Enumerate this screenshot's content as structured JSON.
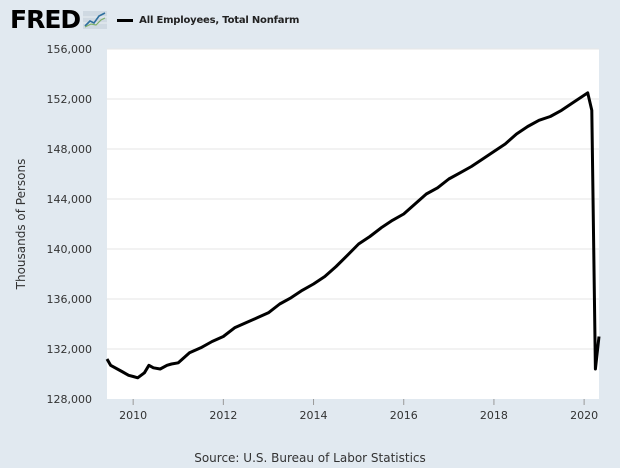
{
  "header": {
    "logo_text": "FRED",
    "series_label": "All Employees, Total Nonfarm"
  },
  "footer": {
    "source": "Source: U.S. Bureau of Labor Statistics"
  },
  "colors": {
    "background": "#e1e9f0",
    "plot_background": "#ffffff",
    "line": "#000000",
    "grid": "#e6e6e6"
  },
  "chart_data": {
    "type": "line",
    "title": "",
    "xlabel": "",
    "ylabel": "Thousands of Persons",
    "xlim": [
      2009.42,
      2020.33
    ],
    "ylim": [
      128000,
      156000
    ],
    "grid": true,
    "legend": "top-left",
    "y_ticks": [
      128000,
      132000,
      136000,
      140000,
      144000,
      148000,
      152000,
      156000
    ],
    "y_tick_labels": [
      "128,000",
      "132,000",
      "136,000",
      "140,000",
      "144,000",
      "148,000",
      "152,000",
      "156,000"
    ],
    "x_ticks": [
      2010,
      2012,
      2014,
      2016,
      2018,
      2020
    ],
    "x_tick_labels": [
      "2010",
      "2012",
      "2014",
      "2016",
      "2018",
      "2020"
    ],
    "series": [
      {
        "name": "All Employees, Total Nonfarm",
        "x": [
          2009.42,
          2009.5,
          2009.75,
          2009.9,
          2010.0,
          2010.1,
          2010.25,
          2010.35,
          2010.45,
          2010.6,
          2010.75,
          2010.85,
          2011.0,
          2011.25,
          2011.5,
          2011.75,
          2012.0,
          2012.25,
          2012.5,
          2012.75,
          2013.0,
          2013.25,
          2013.5,
          2013.75,
          2014.0,
          2014.25,
          2014.5,
          2014.75,
          2015.0,
          2015.25,
          2015.5,
          2015.75,
          2016.0,
          2016.25,
          2016.5,
          2016.75,
          2017.0,
          2017.25,
          2017.5,
          2017.75,
          2018.0,
          2018.25,
          2018.5,
          2018.75,
          2019.0,
          2019.25,
          2019.5,
          2019.75,
          2020.0,
          2020.08,
          2020.17,
          2020.25,
          2020.33
        ],
        "values": [
          131200,
          130700,
          130200,
          129900,
          129800,
          129700,
          130100,
          130700,
          130500,
          130400,
          130700,
          130800,
          130900,
          131700,
          132100,
          132600,
          133000,
          133700,
          134100,
          134500,
          134900,
          135600,
          136100,
          136700,
          137200,
          137800,
          138600,
          139500,
          140400,
          141000,
          141700,
          142300,
          142800,
          143600,
          144400,
          144900,
          145600,
          146100,
          146600,
          147200,
          147800,
          148400,
          149200,
          149800,
          150300,
          150600,
          151100,
          151700,
          152300,
          152500,
          151100,
          130400,
          133000
        ]
      }
    ]
  }
}
